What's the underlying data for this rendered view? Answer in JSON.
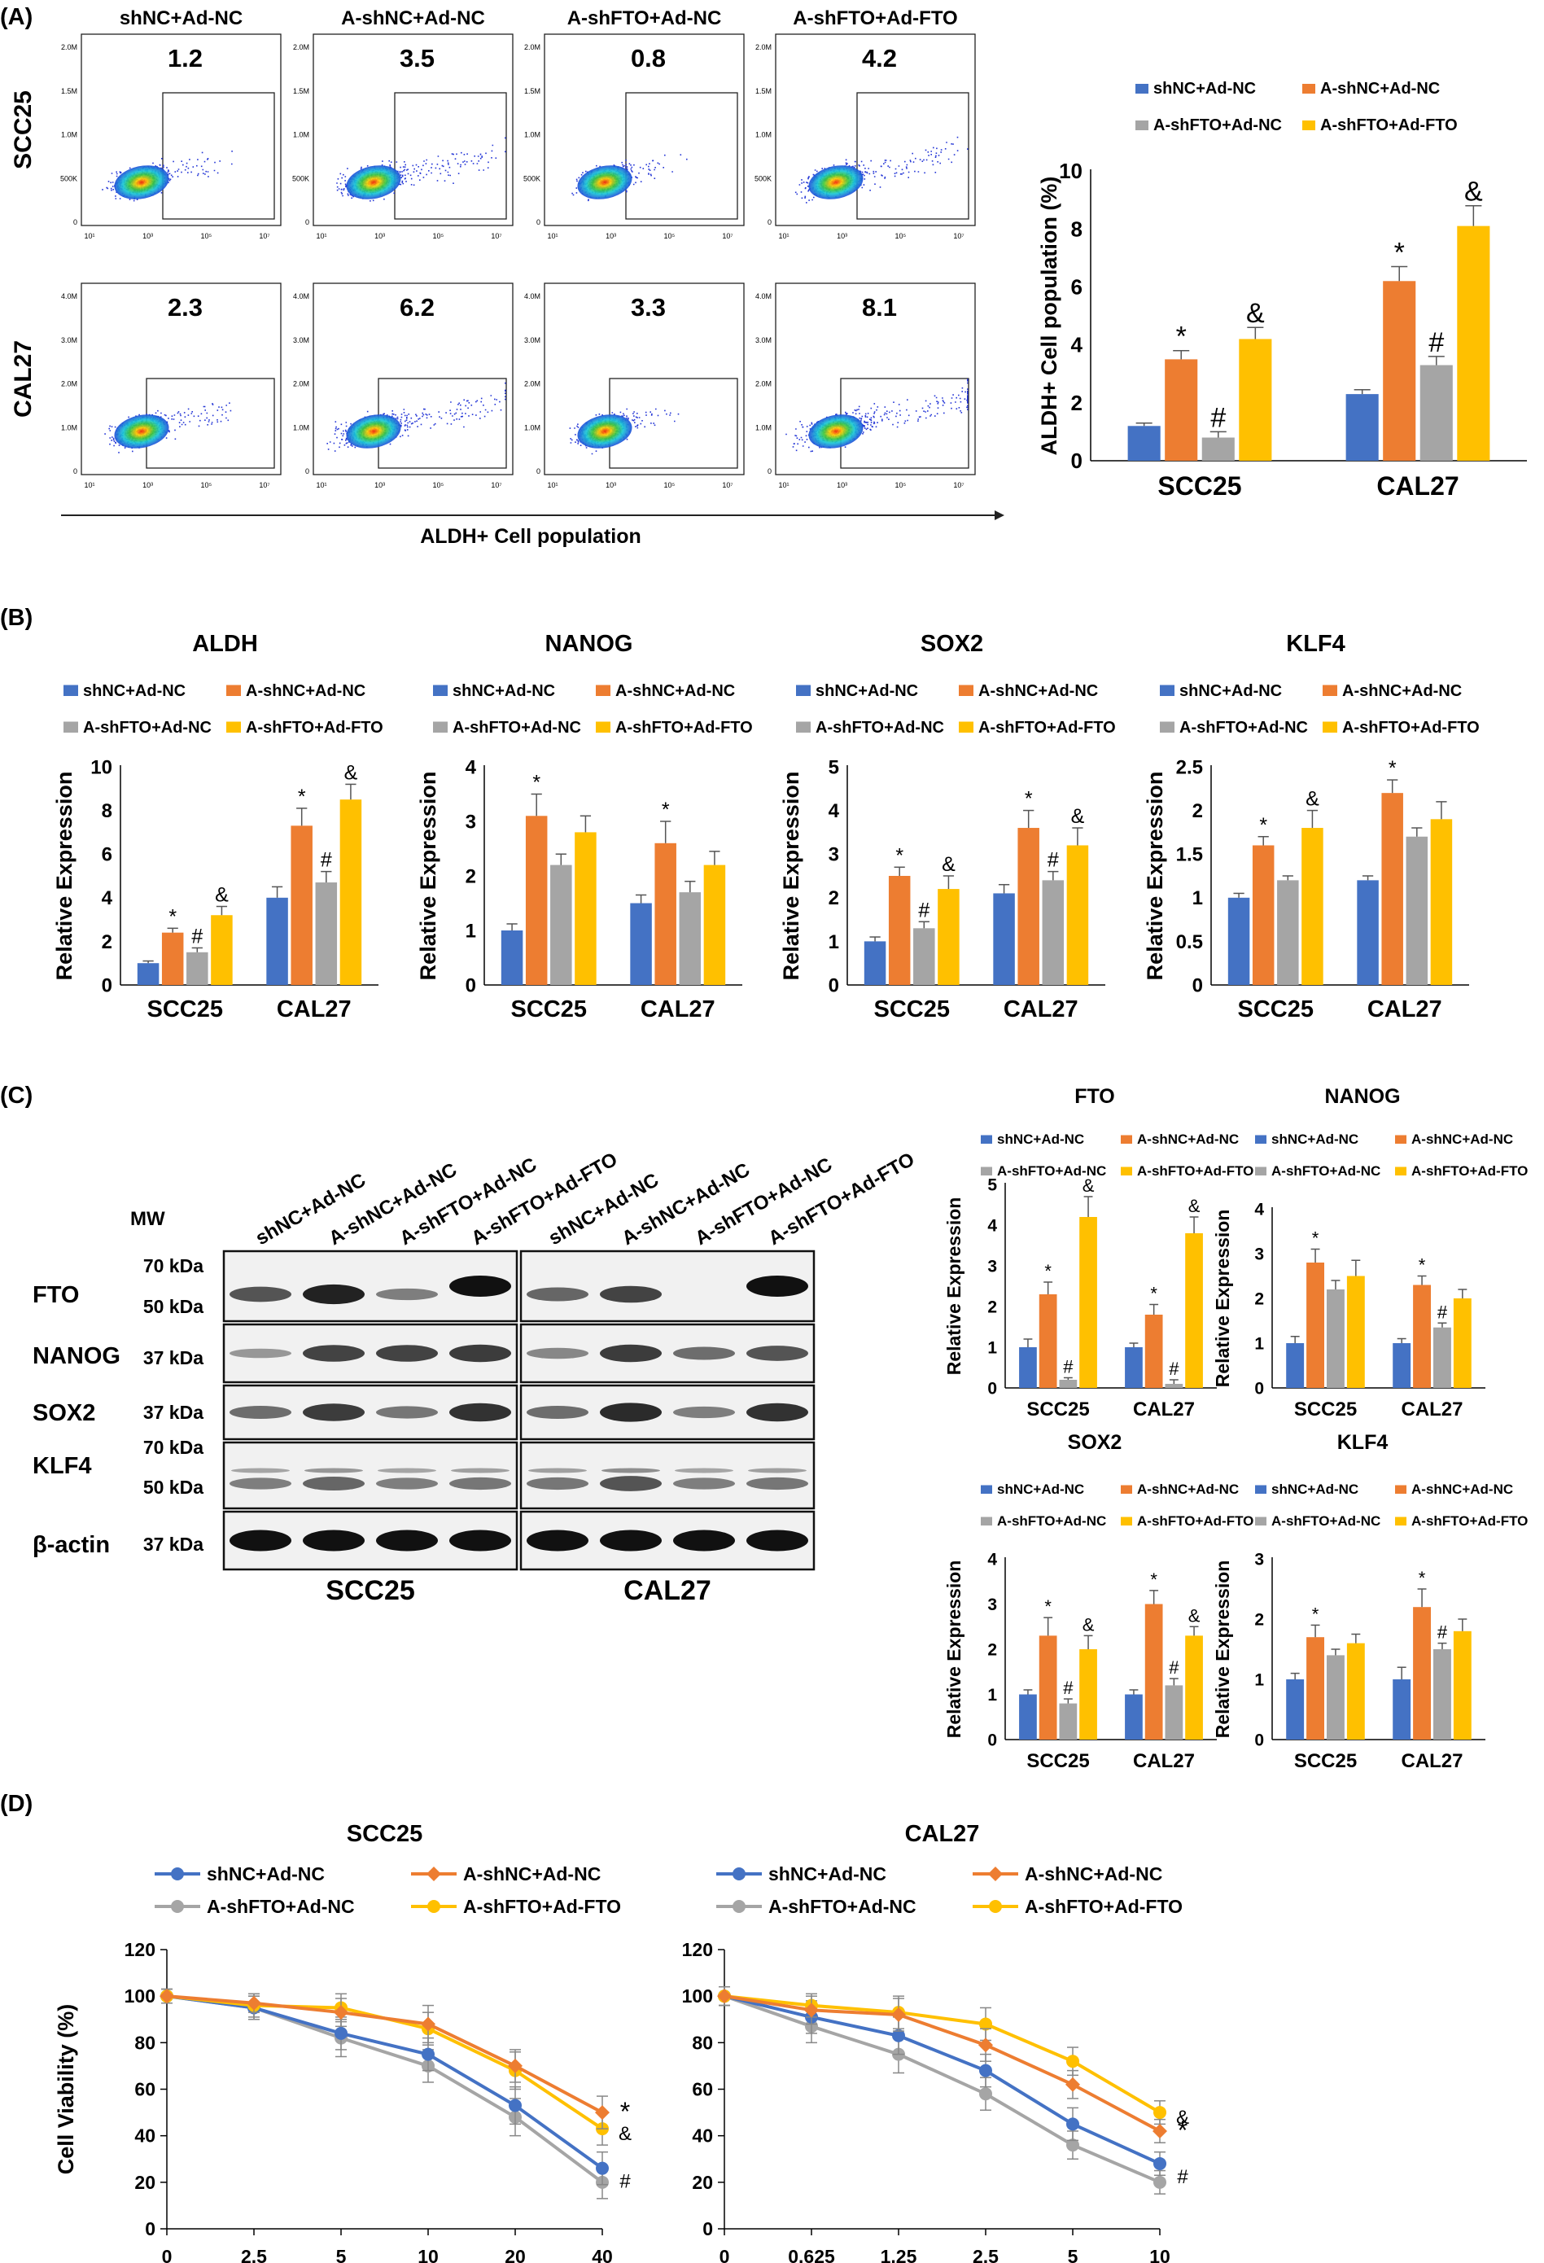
{
  "colors": {
    "blue": "#4472C4",
    "orange": "#ED7D31",
    "gray": "#A5A5A5",
    "yellow": "#FFC000",
    "axis": "#000000",
    "err": "#555555"
  },
  "legend_labels": [
    "shNC+Ad-NC",
    "A-shNC+Ad-NC",
    "A-shFTO+Ad-NC",
    "A-shFTO+Ad-FTO"
  ],
  "panels": {
    "A": "(A)",
    "B": "(B)",
    "C": "(C)",
    "D": "(D)"
  },
  "flow": {
    "columns": [
      "shNC+Ad-NC",
      "A-shNC+Ad-NC",
      "A-shFTO+Ad-NC",
      "A-shFTO+Ad-FTO"
    ],
    "rows": [
      "SCC25",
      "CAL27"
    ],
    "percents": [
      [
        "1.2",
        "3.5",
        "0.8",
        "4.2"
      ],
      [
        "2.3",
        "6.2",
        "3.3",
        "8.1"
      ]
    ],
    "y_ticks": [
      [
        "0",
        "500K",
        "1.0M",
        "1.5M",
        "2.0M"
      ],
      [
        "0",
        "1.0M",
        "2.0M",
        "3.0M",
        "4.0M"
      ]
    ],
    "x_ticks": [
      "10¹",
      "10³",
      "10⁵",
      "10⁷"
    ],
    "xlabel": "ALDH+ Cell population"
  },
  "western": {
    "lanes": [
      "shNC+Ad-NC",
      "A-shNC+Ad-NC",
      "A-shFTO+Ad-NC",
      "A-shFTO+Ad-FTO",
      "shNC+Ad-NC",
      "A-shNC+Ad-NC",
      "A-shFTO+Ad-NC",
      "A-shFTO+Ad-FTO"
    ],
    "mw": "MW",
    "proteins": [
      "FTO",
      "NANOG",
      "SOX2",
      "KLF4",
      "β-actin"
    ],
    "markers": [
      "70 kDa",
      "50 kDa",
      "37 kDa",
      "37 kDa",
      "70 kDa",
      "50 kDa",
      "37 kDa"
    ],
    "groups": [
      "SCC25",
      "CAL27"
    ]
  },
  "chart_data": [
    {
      "id": "A",
      "type": "bar",
      "title": "",
      "xlabel": "",
      "ylabel": "ALDH+ Cell population (%)",
      "categories": [
        "SCC25",
        "CAL27"
      ],
      "ylim": [
        0,
        10
      ],
      "yticks": [
        0,
        2,
        4,
        6,
        8,
        10
      ],
      "legend_position": "top",
      "series": [
        {
          "name": "shNC+Ad-NC",
          "values": [
            1.2,
            2.3
          ],
          "errors": [
            0.1,
            0.15
          ],
          "marks": [
            "",
            ""
          ]
        },
        {
          "name": "A-shNC+Ad-NC",
          "values": [
            3.5,
            6.2
          ],
          "errors": [
            0.3,
            0.5
          ],
          "marks": [
            "*",
            "*"
          ]
        },
        {
          "name": "A-shFTO+Ad-NC",
          "values": [
            0.8,
            3.3
          ],
          "errors": [
            0.2,
            0.3
          ],
          "marks": [
            "#",
            "#"
          ]
        },
        {
          "name": "A-shFTO+Ad-FTO",
          "values": [
            4.2,
            8.1
          ],
          "errors": [
            0.4,
            0.7
          ],
          "marks": [
            "&",
            "&"
          ]
        }
      ]
    },
    {
      "id": "B1",
      "type": "bar",
      "title": "ALDH",
      "ylabel": "Relative Expression",
      "categories": [
        "SCC25",
        "CAL27"
      ],
      "ylim": [
        0,
        10
      ],
      "yticks": [
        0,
        2,
        4,
        6,
        8,
        10
      ],
      "legend_position": "top",
      "series": [
        {
          "name": "shNC+Ad-NC",
          "values": [
            1.0,
            4.0
          ],
          "errors": [
            0.1,
            0.5
          ],
          "marks": [
            "",
            ""
          ]
        },
        {
          "name": "A-shNC+Ad-NC",
          "values": [
            2.4,
            7.3
          ],
          "errors": [
            0.2,
            0.8
          ],
          "marks": [
            "*",
            "*"
          ]
        },
        {
          "name": "A-shFTO+Ad-NC",
          "values": [
            1.5,
            4.7
          ],
          "errors": [
            0.2,
            0.5
          ],
          "marks": [
            "#",
            "#"
          ]
        },
        {
          "name": "A-shFTO+Ad-FTO",
          "values": [
            3.2,
            8.5
          ],
          "errors": [
            0.4,
            0.7
          ],
          "marks": [
            "&",
            "&"
          ]
        }
      ]
    },
    {
      "id": "B2",
      "type": "bar",
      "title": "NANOG",
      "ylabel": "Relative Expression",
      "categories": [
        "SCC25",
        "CAL27"
      ],
      "ylim": [
        0,
        4
      ],
      "yticks": [
        0,
        1,
        2,
        3,
        4
      ],
      "legend_position": "top",
      "series": [
        {
          "name": "shNC+Ad-NC",
          "values": [
            1.0,
            1.5
          ],
          "errors": [
            0.12,
            0.15
          ],
          "marks": [
            "",
            ""
          ]
        },
        {
          "name": "A-shNC+Ad-NC",
          "values": [
            3.1,
            2.6
          ],
          "errors": [
            0.4,
            0.4
          ],
          "marks": [
            "*",
            "*"
          ]
        },
        {
          "name": "A-shFTO+Ad-NC",
          "values": [
            2.2,
            1.7
          ],
          "errors": [
            0.2,
            0.2
          ],
          "marks": [
            "",
            ""
          ]
        },
        {
          "name": "A-shFTO+Ad-FTO",
          "values": [
            2.8,
            2.2
          ],
          "errors": [
            0.3,
            0.25
          ],
          "marks": [
            "",
            ""
          ]
        }
      ]
    },
    {
      "id": "B3",
      "type": "bar",
      "title": "SOX2",
      "ylabel": "Relative Expression",
      "categories": [
        "SCC25",
        "CAL27"
      ],
      "ylim": [
        0,
        5
      ],
      "yticks": [
        0,
        1,
        2,
        3,
        4,
        5
      ],
      "legend_position": "top",
      "series": [
        {
          "name": "shNC+Ad-NC",
          "values": [
            1.0,
            2.1
          ],
          "errors": [
            0.1,
            0.2
          ],
          "marks": [
            "",
            ""
          ]
        },
        {
          "name": "A-shNC+Ad-NC",
          "values": [
            2.5,
            3.6
          ],
          "errors": [
            0.2,
            0.4
          ],
          "marks": [
            "*",
            "*"
          ]
        },
        {
          "name": "A-shFTO+Ad-NC",
          "values": [
            1.3,
            2.4
          ],
          "errors": [
            0.15,
            0.2
          ],
          "marks": [
            "#",
            "#"
          ]
        },
        {
          "name": "A-shFTO+Ad-FTO",
          "values": [
            2.2,
            3.2
          ],
          "errors": [
            0.3,
            0.4
          ],
          "marks": [
            "&",
            "&"
          ]
        }
      ]
    },
    {
      "id": "B4",
      "type": "bar",
      "title": "KLF4",
      "ylabel": "Relative Expression",
      "categories": [
        "SCC25",
        "CAL27"
      ],
      "ylim": [
        0,
        2.5
      ],
      "yticks": [
        0,
        0.5,
        1,
        1.5,
        2,
        2.5
      ],
      "legend_position": "top",
      "series": [
        {
          "name": "shNC+Ad-NC",
          "values": [
            1.0,
            1.2
          ],
          "errors": [
            0.05,
            0.05
          ],
          "marks": [
            "",
            ""
          ]
        },
        {
          "name": "A-shNC+Ad-NC",
          "values": [
            1.6,
            2.2
          ],
          "errors": [
            0.1,
            0.15
          ],
          "marks": [
            "*",
            "*"
          ]
        },
        {
          "name": "A-shFTO+Ad-NC",
          "values": [
            1.2,
            1.7
          ],
          "errors": [
            0.05,
            0.1
          ],
          "marks": [
            "",
            ""
          ]
        },
        {
          "name": "A-shFTO+Ad-FTO",
          "values": [
            1.8,
            1.9
          ],
          "errors": [
            0.2,
            0.2
          ],
          "marks": [
            "&",
            ""
          ]
        }
      ]
    },
    {
      "id": "C1",
      "type": "bar",
      "title": "FTO",
      "ylabel": "Relative Expression",
      "categories": [
        "SCC25",
        "CAL27"
      ],
      "ylim": [
        0,
        5
      ],
      "yticks": [
        0,
        1,
        2,
        3,
        4,
        5
      ],
      "legend_position": "top",
      "series": [
        {
          "name": "shNC+Ad-NC",
          "values": [
            1.0,
            1.0
          ],
          "errors": [
            0.2,
            0.1
          ],
          "marks": [
            "",
            ""
          ]
        },
        {
          "name": "A-shNC+Ad-NC",
          "values": [
            2.3,
            1.8
          ],
          "errors": [
            0.3,
            0.25
          ],
          "marks": [
            "*",
            "*"
          ]
        },
        {
          "name": "A-shFTO+Ad-NC",
          "values": [
            0.2,
            0.1
          ],
          "errors": [
            0.05,
            0.1
          ],
          "marks": [
            "#",
            "#"
          ]
        },
        {
          "name": "A-shFTO+Ad-FTO",
          "values": [
            4.2,
            3.8
          ],
          "errors": [
            0.5,
            0.4
          ],
          "marks": [
            "&",
            "&"
          ]
        }
      ]
    },
    {
      "id": "C2",
      "type": "bar",
      "title": "NANOG",
      "ylabel": "Relative Expression",
      "categories": [
        "SCC25",
        "CAL27"
      ],
      "ylim": [
        0,
        4
      ],
      "yticks": [
        0,
        1,
        2,
        3,
        4
      ],
      "legend_position": "top",
      "series": [
        {
          "name": "shNC+Ad-NC",
          "values": [
            1.0,
            1.0
          ],
          "errors": [
            0.15,
            0.1
          ],
          "marks": [
            "",
            ""
          ]
        },
        {
          "name": "A-shNC+Ad-NC",
          "values": [
            2.8,
            2.3
          ],
          "errors": [
            0.3,
            0.2
          ],
          "marks": [
            "*",
            "*"
          ]
        },
        {
          "name": "A-shFTO+Ad-NC",
          "values": [
            2.2,
            1.35
          ],
          "errors": [
            0.2,
            0.1
          ],
          "marks": [
            "",
            "#"
          ]
        },
        {
          "name": "A-shFTO+Ad-FTO",
          "values": [
            2.5,
            2.0
          ],
          "errors": [
            0.35,
            0.2
          ],
          "marks": [
            "",
            ""
          ]
        }
      ]
    },
    {
      "id": "C3",
      "type": "bar",
      "title": "SOX2",
      "ylabel": "Relative Expression",
      "categories": [
        "SCC25",
        "CAL27"
      ],
      "ylim": [
        0,
        4
      ],
      "yticks": [
        0,
        1,
        2,
        3,
        4
      ],
      "legend_position": "top",
      "series": [
        {
          "name": "shNC+Ad-NC",
          "values": [
            1.0,
            1.0
          ],
          "errors": [
            0.1,
            0.1
          ],
          "marks": [
            "",
            ""
          ]
        },
        {
          "name": "A-shNC+Ad-NC",
          "values": [
            2.3,
            3.0
          ],
          "errors": [
            0.4,
            0.3
          ],
          "marks": [
            "*",
            "*"
          ]
        },
        {
          "name": "A-shFTO+Ad-NC",
          "values": [
            0.8,
            1.2
          ],
          "errors": [
            0.1,
            0.15
          ],
          "marks": [
            "#",
            "#"
          ]
        },
        {
          "name": "A-shFTO+Ad-FTO",
          "values": [
            2.0,
            2.3
          ],
          "errors": [
            0.3,
            0.2
          ],
          "marks": [
            "&",
            "&"
          ]
        }
      ]
    },
    {
      "id": "C4",
      "type": "bar",
      "title": "KLF4",
      "ylabel": "Relative Expression",
      "categories": [
        "SCC25",
        "CAL27"
      ],
      "ylim": [
        0,
        3
      ],
      "yticks": [
        0,
        1,
        2,
        3
      ],
      "legend_position": "top",
      "series": [
        {
          "name": "shNC+Ad-NC",
          "values": [
            1.0,
            1.0
          ],
          "errors": [
            0.1,
            0.2
          ],
          "marks": [
            "",
            ""
          ]
        },
        {
          "name": "A-shNC+Ad-NC",
          "values": [
            1.7,
            2.2
          ],
          "errors": [
            0.2,
            0.3
          ],
          "marks": [
            "*",
            "*"
          ]
        },
        {
          "name": "A-shFTO+Ad-NC",
          "values": [
            1.4,
            1.5
          ],
          "errors": [
            0.1,
            0.1
          ],
          "marks": [
            "",
            "#"
          ]
        },
        {
          "name": "A-shFTO+Ad-FTO",
          "values": [
            1.6,
            1.8
          ],
          "errors": [
            0.15,
            0.2
          ],
          "marks": [
            "",
            ""
          ]
        }
      ]
    },
    {
      "id": "D1",
      "type": "line",
      "title": "SCC25",
      "ylabel": "Cell Viability (%)",
      "x": [
        "0",
        "2.5",
        "5",
        "10",
        "20",
        "40"
      ],
      "ylim": [
        0,
        120
      ],
      "yticks": [
        0,
        20,
        40,
        60,
        80,
        100,
        120
      ],
      "legend_position": "top",
      "series": [
        {
          "name": "shNC+Ad-NC",
          "values": [
            100,
            95,
            84,
            75,
            53,
            26
          ],
          "errors": [
            3,
            5,
            7,
            7,
            8,
            7
          ]
        },
        {
          "name": "A-shNC+Ad-NC",
          "values": [
            100,
            97,
            93,
            88,
            70,
            50
          ],
          "errors": [
            3,
            4,
            6,
            8,
            7,
            7
          ]
        },
        {
          "name": "A-shFTO+Ad-NC",
          "values": [
            100,
            95,
            82,
            70,
            48,
            20
          ],
          "errors": [
            3,
            5,
            8,
            7,
            8,
            7
          ]
        },
        {
          "name": "A-shFTO+Ad-FTO",
          "values": [
            100,
            96,
            95,
            86,
            68,
            43
          ],
          "errors": [
            3,
            5,
            6,
            7,
            8,
            7
          ]
        }
      ],
      "end_marks": [
        "*",
        "&",
        "#"
      ]
    },
    {
      "id": "D2",
      "type": "line",
      "title": "CAL27",
      "ylabel": "",
      "x": [
        "0",
        "0.625",
        "1.25",
        "2.5",
        "5",
        "10"
      ],
      "ylim": [
        0,
        120
      ],
      "yticks": [
        0,
        20,
        40,
        60,
        80,
        100,
        120
      ],
      "legend_position": "top",
      "series": [
        {
          "name": "shNC+Ad-NC",
          "values": [
            100,
            91,
            83,
            68,
            45,
            28
          ],
          "errors": [
            4,
            7,
            8,
            7,
            7,
            5
          ]
        },
        {
          "name": "A-shNC+Ad-NC",
          "values": [
            100,
            94,
            92,
            79,
            62,
            42
          ],
          "errors": [
            4,
            6,
            7,
            7,
            6,
            5
          ]
        },
        {
          "name": "A-shFTO+Ad-NC",
          "values": [
            100,
            87,
            75,
            58,
            36,
            20
          ],
          "errors": [
            4,
            7,
            8,
            7,
            6,
            5
          ]
        },
        {
          "name": "A-shFTO+Ad-FTO",
          "values": [
            100,
            96,
            93,
            88,
            72,
            50
          ],
          "errors": [
            4,
            5,
            7,
            7,
            6,
            5
          ]
        }
      ],
      "end_marks": [
        "*",
        "&",
        "#"
      ]
    }
  ]
}
